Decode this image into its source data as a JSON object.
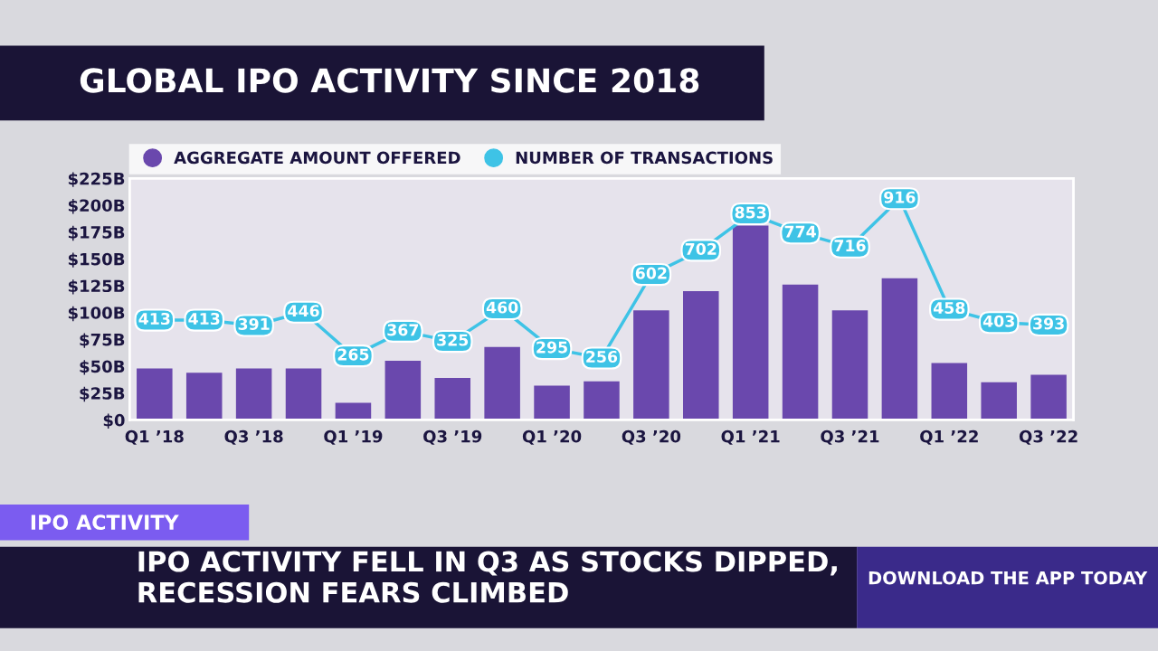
{
  "chart_data": {
    "type": "bar",
    "title": "GLOBAL IPO ACTIVITY SINCE 2018",
    "categories": [
      "Q1 ’18",
      null,
      "Q3 ’18",
      null,
      "Q1 ’19",
      null,
      "Q3 ’19",
      null,
      "Q1 ’20",
      null,
      "Q3 ’20",
      null,
      "Q1 ’21",
      null,
      "Q3 ’21",
      null,
      "Q1 ’22",
      null,
      "Q3 ’22"
    ],
    "series": [
      {
        "name": "AGGREGATE AMOUNT OFFERED",
        "color": "#6a48ad",
        "values": [
          48,
          44,
          48,
          48,
          16,
          55,
          39,
          68,
          32,
          36,
          102,
          120,
          181,
          126,
          102,
          132,
          53,
          35,
          42
        ]
      },
      {
        "name": "NUMBER OF TRANSACTIONS",
        "type": "line",
        "axis": "y2",
        "marker": "square",
        "color": "#3ec3e6",
        "data_labels": true,
        "values": [
          413,
          413,
          391,
          446,
          265,
          367,
          325,
          460,
          295,
          256,
          602,
          702,
          853,
          774,
          716,
          916,
          458,
          403,
          393
        ]
      }
    ],
    "ylim": [
      0,
      225
    ],
    "yticks": [
      {
        "value": 0,
        "label": "$0"
      },
      {
        "value": 25,
        "label": "$25B"
      },
      {
        "value": 50,
        "label": "$50B"
      },
      {
        "value": 75,
        "label": "$75B"
      },
      {
        "value": 100,
        "label": "$100B"
      },
      {
        "value": 125,
        "label": "$125B"
      },
      {
        "value": 150,
        "label": "$150B"
      },
      {
        "value": 175,
        "label": "$175B"
      },
      {
        "value": 200,
        "label": "$200B"
      },
      {
        "value": 225,
        "label": "$225B"
      }
    ],
    "y2lim": [
      0,
      1000
    ],
    "legend": "top left",
    "grid": false,
    "annotations": [
      "IPO ACTIVITY",
      "IPO ACTIVITY FELL IN Q3 AS STOCKS DIPPED, RECESSION FEARS CLIMBED",
      "DOWNLOAD THE APP TODAY"
    ]
  }
}
